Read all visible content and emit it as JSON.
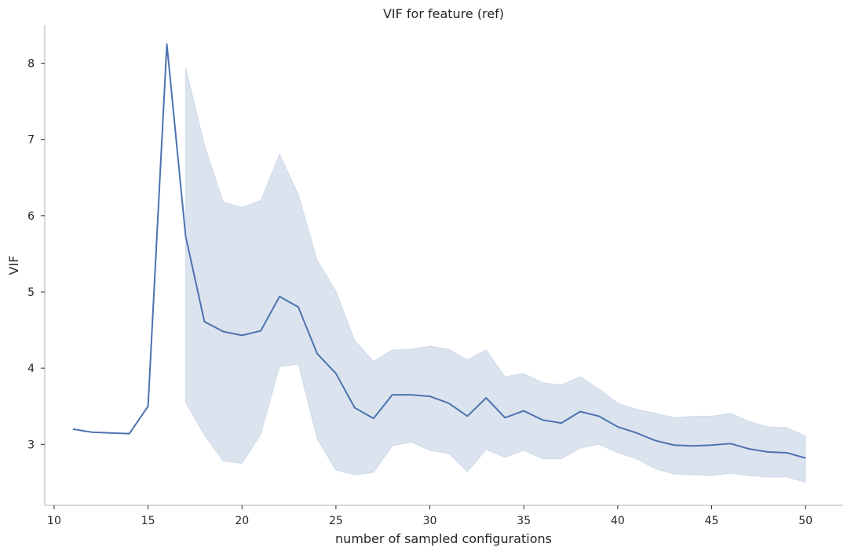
{
  "chart_data": {
    "type": "line",
    "title": "VIF for feature (ref)",
    "xlabel": "number of sampled configurations",
    "ylabel": "VIF",
    "xlim": [
      9.5,
      52
    ],
    "ylim": [
      2.2,
      8.5
    ],
    "xticks": [
      10,
      15,
      20,
      25,
      30,
      35,
      40,
      45,
      50
    ],
    "yticks": [
      3,
      4,
      5,
      6,
      7,
      8
    ],
    "grid": false,
    "line_color": "#4c72b0",
    "band_color": "#4c72b0",
    "series": [
      {
        "x": [
          11,
          12,
          13,
          14,
          15,
          16,
          17,
          18,
          19,
          20,
          21,
          22,
          23,
          24,
          25,
          26,
          27,
          28,
          29,
          30,
          31,
          32,
          33,
          34,
          35,
          36,
          37,
          38,
          39,
          40,
          41,
          42,
          43,
          44,
          45,
          46,
          47,
          48,
          49,
          50
        ],
        "y": [
          3.2,
          3.16,
          3.15,
          3.14,
          3.5,
          8.25,
          5.73,
          4.61,
          4.48,
          4.43,
          4.49,
          4.94,
          4.8,
          4.19,
          3.93,
          3.48,
          3.34,
          3.65,
          3.65,
          3.63,
          3.54,
          3.37,
          3.61,
          3.35,
          3.44,
          3.32,
          3.28,
          3.43,
          3.37,
          3.23,
          3.15,
          3.05,
          2.99,
          2.98,
          2.99,
          3.01,
          2.94,
          2.9,
          2.89,
          2.82
        ]
      }
    ],
    "confidence_band": {
      "x": [
        17,
        18,
        19,
        20,
        21,
        22,
        23,
        24,
        25,
        26,
        27,
        28,
        29,
        30,
        31,
        32,
        33,
        34,
        35,
        36,
        37,
        38,
        39,
        40,
        41,
        42,
        43,
        44,
        45,
        46,
        47,
        48,
        49,
        50
      ],
      "lower": [
        3.55,
        3.12,
        2.78,
        2.75,
        3.13,
        4.02,
        4.05,
        3.07,
        2.66,
        2.6,
        2.63,
        2.98,
        3.03,
        2.92,
        2.88,
        2.64,
        2.93,
        2.83,
        2.92,
        2.81,
        2.81,
        2.95,
        3.0,
        2.89,
        2.81,
        2.68,
        2.61,
        2.6,
        2.59,
        2.62,
        2.59,
        2.57,
        2.57,
        2.5
      ],
      "upper": [
        7.95,
        6.93,
        6.18,
        6.11,
        6.2,
        6.81,
        6.28,
        5.42,
        5.01,
        4.36,
        4.09,
        4.24,
        4.25,
        4.29,
        4.25,
        4.11,
        4.24,
        3.89,
        3.93,
        3.81,
        3.78,
        3.89,
        3.73,
        3.54,
        3.46,
        3.41,
        3.35,
        3.37,
        3.37,
        3.41,
        3.3,
        3.23,
        3.22,
        3.11
      ]
    }
  }
}
